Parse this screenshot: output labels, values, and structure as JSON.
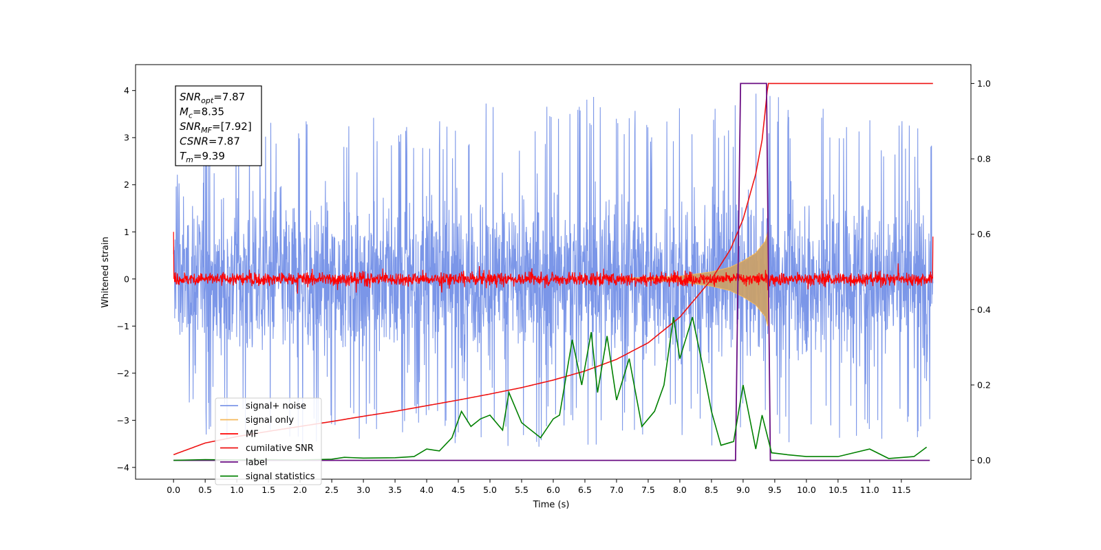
{
  "chart_data": {
    "type": "line",
    "title": "",
    "xlabel": "Time (s)",
    "ylabel": "Whitened strain",
    "xlim": [
      -0.6,
      12.6
    ],
    "ylim": [
      -4.25,
      4.55
    ],
    "ylim_right": [
      -0.05,
      1.05
    ],
    "grid": false,
    "legend_position": "lower-left",
    "x_ticks": [
      0.0,
      0.5,
      1.0,
      1.5,
      2.0,
      2.5,
      3.0,
      3.5,
      4.0,
      4.5,
      5.0,
      5.5,
      6.0,
      6.5,
      7.0,
      7.5,
      8.0,
      8.5,
      9.0,
      9.5,
      10.0,
      10.5,
      11.0,
      11.5
    ],
    "x_tick_labels": [
      "0.0",
      "0.5",
      "1.0",
      "1.5",
      "2.0",
      "2.5",
      "3.0",
      "3.5",
      "4.0",
      "4.5",
      "5.0",
      "5.5",
      "6.0",
      "6.5",
      "7.0",
      "7.5",
      "8.0",
      "8.5",
      "9.0",
      "9.5",
      "10.0",
      "10.5",
      "11.0",
      "11.5"
    ],
    "y_ticks": [
      4,
      3,
      2,
      1,
      0,
      -1,
      -2,
      -3,
      -4
    ],
    "y_tick_labels": [
      "4",
      "3",
      "2",
      "1",
      "0",
      "−1",
      "−2",
      "−3",
      "−4"
    ],
    "y_right_ticks": [
      1.0,
      0.8,
      0.6,
      0.4,
      0.2,
      0.0
    ],
    "y_right_tick_labels": [
      "1.0",
      "0.8",
      "0.6",
      "0.4",
      "0.2",
      "0.0"
    ],
    "series": [
      {
        "name": "signal+ noise",
        "color": "#7b96e8",
        "axis": "left",
        "x_range": [
          0.0,
          12.0
        ],
        "envelope_max": [
          2.3,
          3.4,
          3.4,
          3.5,
          3.4,
          3.5,
          3.6,
          3.5,
          3.4,
          3.4,
          3.8,
          3.6,
          3.7,
          3.9,
          3.9,
          3.6,
          3.9,
          3.6,
          3.8,
          4.15,
          3.4,
          3.9,
          3.5,
          3.4,
          3.5
        ],
        "envelope_min": [
          -3.0,
          -3.4,
          -3.5,
          -3.4,
          -3.6,
          -3.5,
          -3.4,
          -3.5,
          -3.4,
          -3.6,
          -3.5,
          -3.8,
          -3.4,
          -3.6,
          -3.5,
          -3.6,
          -3.5,
          -3.8,
          -3.5,
          -3.4,
          -3.6,
          -3.5,
          -3.6,
          -3.4,
          -3.5
        ]
      },
      {
        "name": "signal only",
        "color": "#f5b85a",
        "axis": "left",
        "points": [
          [
            7.0,
            0.02
          ],
          [
            7.5,
            0.03
          ],
          [
            8.0,
            0.06
          ],
          [
            8.5,
            0.15
          ],
          [
            8.8,
            0.25
          ],
          [
            9.0,
            0.38
          ],
          [
            9.2,
            0.55
          ],
          [
            9.35,
            0.8
          ],
          [
            9.39,
            1.0
          ]
        ]
      },
      {
        "name": "MF",
        "color": "#ff0000",
        "axis": "left",
        "x_range": [
          0.0,
          12.0
        ],
        "start_value": 1.0,
        "end_value": 0.9,
        "band": 0.2
      },
      {
        "name": "cumilative SNR",
        "color": "#ee1111",
        "axis": "right",
        "points": [
          [
            0.0,
            0.015
          ],
          [
            0.5,
            0.046
          ],
          [
            1.0,
            0.063
          ],
          [
            1.5,
            0.077
          ],
          [
            2.0,
            0.09
          ],
          [
            2.5,
            0.103
          ],
          [
            3.0,
            0.117
          ],
          [
            3.5,
            0.13
          ],
          [
            4.0,
            0.145
          ],
          [
            4.5,
            0.16
          ],
          [
            5.0,
            0.176
          ],
          [
            5.5,
            0.193
          ],
          [
            6.0,
            0.213
          ],
          [
            6.5,
            0.237
          ],
          [
            7.0,
            0.268
          ],
          [
            7.5,
            0.312
          ],
          [
            8.0,
            0.38
          ],
          [
            8.5,
            0.48
          ],
          [
            8.8,
            0.56
          ],
          [
            9.0,
            0.64
          ],
          [
            9.2,
            0.76
          ],
          [
            9.3,
            0.85
          ],
          [
            9.37,
            0.96
          ],
          [
            9.39,
            1.0
          ],
          [
            12.0,
            1.0
          ]
        ]
      },
      {
        "name": "label",
        "color": "#6a0d83",
        "axis": "right",
        "points": [
          [
            0.0,
            0.0
          ],
          [
            8.88,
            0.0
          ],
          [
            8.96,
            1.0
          ],
          [
            9.37,
            1.0
          ],
          [
            9.43,
            0.0
          ],
          [
            11.95,
            0.0
          ]
        ]
      },
      {
        "name": "signal statistics",
        "color": "#008000",
        "axis": "right",
        "points": [
          [
            0.0,
            0.0
          ],
          [
            0.5,
            0.002
          ],
          [
            1.0,
            0.001
          ],
          [
            1.5,
            0.002
          ],
          [
            2.0,
            0.001
          ],
          [
            2.5,
            0.003
          ],
          [
            2.7,
            0.008
          ],
          [
            3.0,
            0.006
          ],
          [
            3.5,
            0.007
          ],
          [
            3.8,
            0.01
          ],
          [
            4.0,
            0.03
          ],
          [
            4.2,
            0.025
          ],
          [
            4.4,
            0.06
          ],
          [
            4.55,
            0.13
          ],
          [
            4.7,
            0.09
          ],
          [
            4.85,
            0.11
          ],
          [
            5.0,
            0.12
          ],
          [
            5.2,
            0.08
          ],
          [
            5.3,
            0.18
          ],
          [
            5.5,
            0.1
          ],
          [
            5.8,
            0.06
          ],
          [
            6.0,
            0.11
          ],
          [
            6.1,
            0.12
          ],
          [
            6.3,
            0.32
          ],
          [
            6.45,
            0.2
          ],
          [
            6.6,
            0.34
          ],
          [
            6.7,
            0.18
          ],
          [
            6.85,
            0.33
          ],
          [
            7.0,
            0.16
          ],
          [
            7.2,
            0.27
          ],
          [
            7.4,
            0.09
          ],
          [
            7.6,
            0.13
          ],
          [
            7.75,
            0.2
          ],
          [
            7.9,
            0.38
          ],
          [
            8.0,
            0.27
          ],
          [
            8.2,
            0.38
          ],
          [
            8.35,
            0.26
          ],
          [
            8.5,
            0.13
          ],
          [
            8.65,
            0.04
          ],
          [
            8.85,
            0.05
          ],
          [
            9.0,
            0.2
          ],
          [
            9.2,
            0.03
          ],
          [
            9.3,
            0.12
          ],
          [
            9.45,
            0.02
          ],
          [
            9.7,
            0.015
          ],
          [
            10.0,
            0.01
          ],
          [
            10.5,
            0.01
          ],
          [
            11.0,
            0.03
          ],
          [
            11.3,
            0.005
          ],
          [
            11.7,
            0.01
          ],
          [
            11.9,
            0.035
          ]
        ]
      }
    ],
    "annotation": {
      "lines": [
        {
          "base": "SNR",
          "sub": "opt",
          "rest": "=7.87"
        },
        {
          "base": "M",
          "sub": "c",
          "rest": "=8.35"
        },
        {
          "base": "SNR",
          "sub": "MF",
          "rest": "=[7.92]"
        },
        {
          "base": "CSNR",
          "sub": "",
          "rest": "=7.87"
        },
        {
          "base": "T",
          "sub": "m",
          "rest": "=9.39"
        }
      ]
    }
  }
}
